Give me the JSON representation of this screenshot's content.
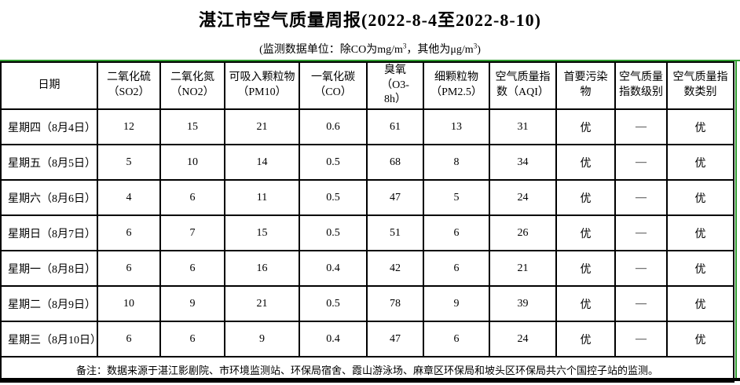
{
  "title": "湛江市空气质量周报(2022-8-4至2022-8-10)",
  "subtitle": {
    "part1": "(监测数据单位：除CO为mg/m",
    "sup1": "3",
    "part2": "，其他为μg/m",
    "sup2": "3",
    "part3": ")"
  },
  "colors": {
    "accent_green": "#2e9b2e",
    "border_black": "#000000"
  },
  "table": {
    "columns": [
      "日期",
      "二氧化硫\n（SO2）",
      "二氧化氮\n（NO2）",
      "可吸入颗粒物\n（PM10）",
      "一氧化碳\n（CO）",
      "臭氧\n（O3-\n8h）",
      "细颗粒物\n（PM2.5）",
      "空气质量指\n数（AQI）",
      "首要污染\n物",
      "空气质量\n指数级别",
      "空气质量指\n数类别"
    ],
    "rows": [
      [
        "星期四（8月4日）",
        "12",
        "15",
        "21",
        "0.6",
        "61",
        "13",
        "31",
        "优",
        "—",
        "优"
      ],
      [
        "星期五（8月5日）",
        "5",
        "10",
        "14",
        "0.5",
        "68",
        "8",
        "34",
        "优",
        "—",
        "优"
      ],
      [
        "星期六（8月6日）",
        "4",
        "6",
        "11",
        "0.5",
        "47",
        "5",
        "24",
        "优",
        "—",
        "优"
      ],
      [
        "星期日（8月7日）",
        "6",
        "7",
        "15",
        "0.5",
        "51",
        "6",
        "26",
        "优",
        "—",
        "优"
      ],
      [
        "星期一（8月8日）",
        "6",
        "6",
        "16",
        "0.4",
        "42",
        "6",
        "21",
        "优",
        "—",
        "优"
      ],
      [
        "星期二（8月9日）",
        "10",
        "9",
        "21",
        "0.5",
        "78",
        "9",
        "39",
        "优",
        "—",
        "优"
      ],
      [
        "星期三（8月10日）",
        "6",
        "6",
        "9",
        "0.4",
        "47",
        "6",
        "24",
        "优",
        "—",
        "优"
      ]
    ],
    "note": "备注：数据来源于湛江影剧院、市环境监测站、环保局宿舍、霞山游泳场、麻章区环保局和坡头区环保局共六个国控子站的监测。"
  }
}
